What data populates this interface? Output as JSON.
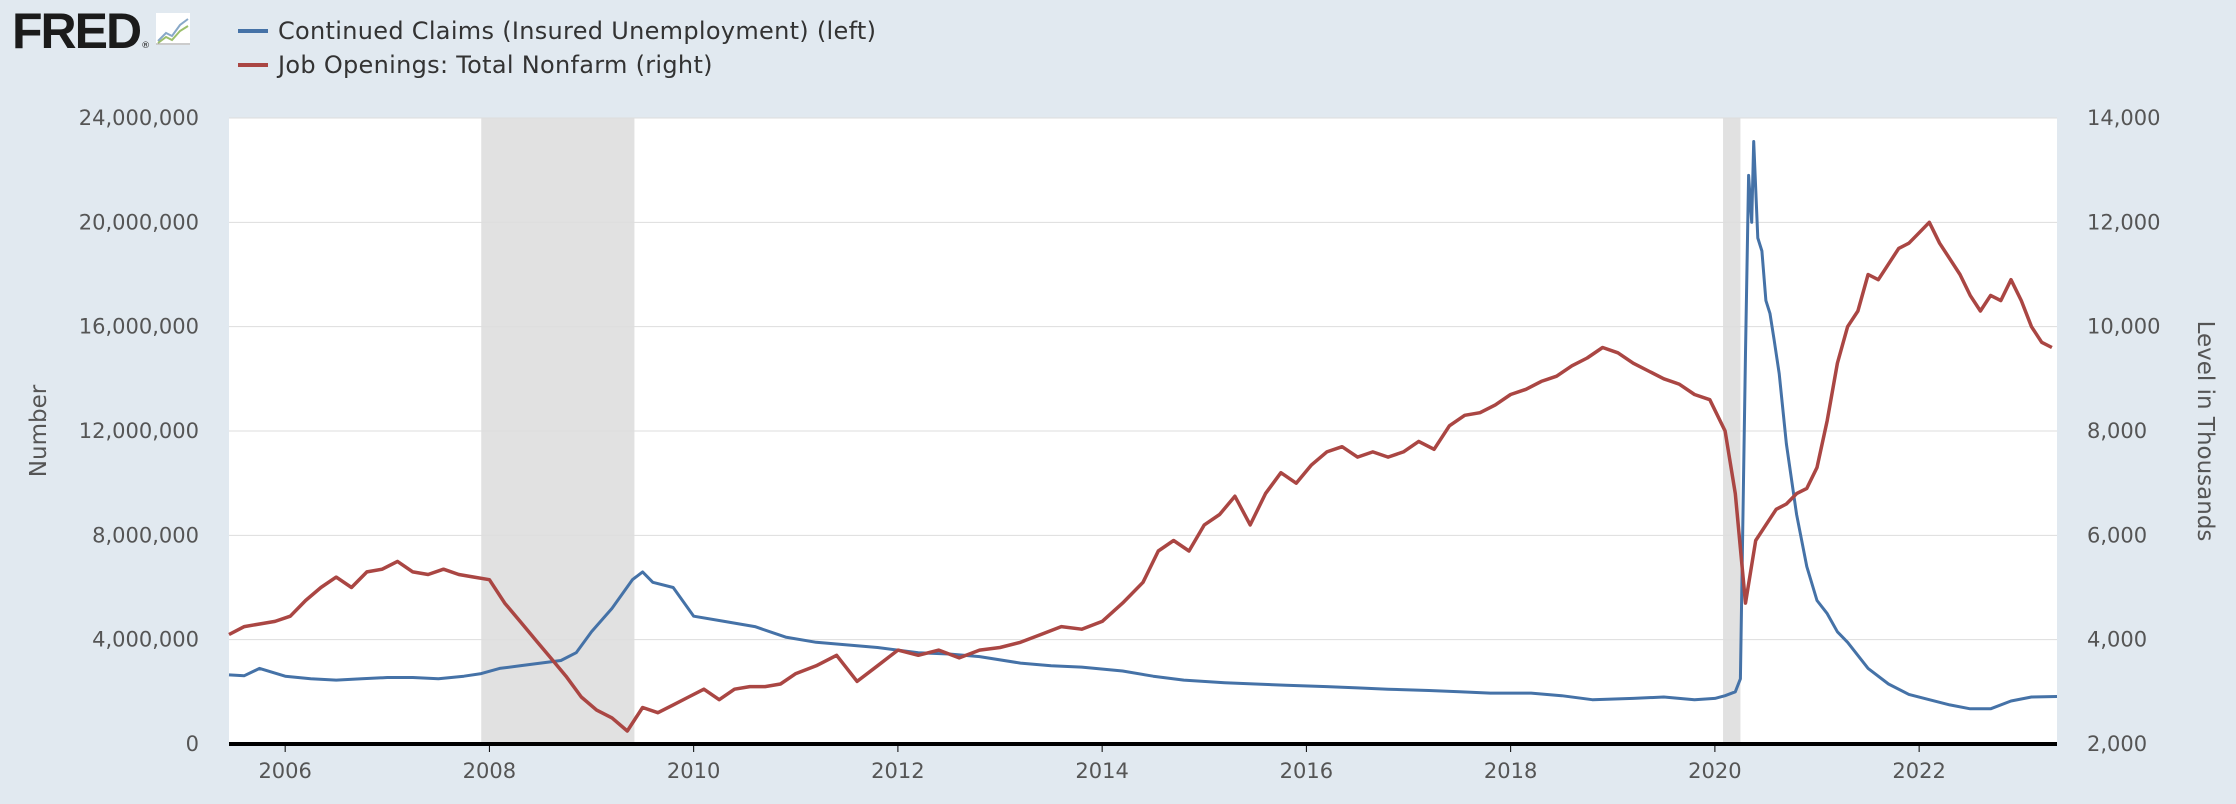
{
  "logo": {
    "text": "FRED",
    "mark": "®",
    "icon": "line-chart-icon"
  },
  "legend": [
    {
      "label": "Continued Claims (Insured Unemployment) (left)",
      "color": "#4572a7"
    },
    {
      "label": "Job Openings: Total Nonfarm (right)",
      "color": "#aa4643"
    }
  ],
  "colors": {
    "background": "#e1e9f0",
    "plot_background": "#ffffff",
    "recession": "#e1e1e1",
    "gridline": "#dddddd",
    "axis": "#000000"
  },
  "chart_data": {
    "type": "line",
    "title": "",
    "xlabel": "",
    "ylabel_left": "Number",
    "ylabel_right": "Level in Thousands",
    "xlim": [
      2005.45,
      2023.35
    ],
    "ylim_left": [
      0,
      24000000
    ],
    "ylim_right": [
      2000,
      14000
    ],
    "x_ticks": [
      2006,
      2008,
      2010,
      2012,
      2014,
      2016,
      2018,
      2020,
      2022
    ],
    "y_left_ticks": [
      0,
      4000000,
      8000000,
      12000000,
      16000000,
      20000000,
      24000000
    ],
    "y_left_tick_labels": [
      "0",
      "4,000,000",
      "8,000,000",
      "12,000,000",
      "16,000,000",
      "20,000,000",
      "24,000,000"
    ],
    "y_right_ticks": [
      2000,
      4000,
      6000,
      8000,
      10000,
      12000,
      14000
    ],
    "y_right_tick_labels": [
      "2,000",
      "4,000",
      "6,000",
      "8,000",
      "10,000",
      "12,000",
      "14,000"
    ],
    "grid": true,
    "recessions": [
      [
        2007.92,
        2009.42
      ],
      [
        2020.08,
        2020.25
      ]
    ],
    "series": [
      {
        "name": "Continued Claims (Insured Unemployment) (left)",
        "axis": "left",
        "color": "#4572a7",
        "x": [
          2005.45,
          2005.6,
          2005.75,
          2006.0,
          2006.25,
          2006.5,
          2006.75,
          2007.0,
          2007.25,
          2007.5,
          2007.75,
          2007.92,
          2008.1,
          2008.3,
          2008.5,
          2008.7,
          2008.85,
          2009.0,
          2009.2,
          2009.4,
          2009.5,
          2009.6,
          2009.8,
          2010.0,
          2010.3,
          2010.6,
          2010.9,
          2011.2,
          2011.5,
          2011.8,
          2012.2,
          2012.5,
          2012.8,
          2013.2,
          2013.5,
          2013.8,
          2014.2,
          2014.5,
          2014.8,
          2015.2,
          2015.5,
          2015.8,
          2016.2,
          2016.5,
          2016.8,
          2017.2,
          2017.5,
          2017.8,
          2018.2,
          2018.5,
          2018.8,
          2019.2,
          2019.5,
          2019.8,
          2020.0,
          2020.1,
          2020.2,
          2020.25,
          2020.3,
          2020.33,
          2020.36,
          2020.38,
          2020.42,
          2020.46,
          2020.5,
          2020.54,
          2020.58,
          2020.63,
          2020.7,
          2020.8,
          2020.9,
          2021.0,
          2021.1,
          2021.2,
          2021.3,
          2021.5,
          2021.7,
          2021.9,
          2022.1,
          2022.3,
          2022.5,
          2022.7,
          2022.9,
          2023.1,
          2023.35
        ],
        "y": [
          2650000,
          2620000,
          2900000,
          2600000,
          2500000,
          2450000,
          2500000,
          2550000,
          2550000,
          2500000,
          2600000,
          2700000,
          2900000,
          3000000,
          3100000,
          3200000,
          3500000,
          4300000,
          5200000,
          6300000,
          6600000,
          6200000,
          6000000,
          4900000,
          4700000,
          4500000,
          4100000,
          3900000,
          3800000,
          3700000,
          3500000,
          3450000,
          3350000,
          3100000,
          3000000,
          2950000,
          2800000,
          2600000,
          2450000,
          2350000,
          2300000,
          2250000,
          2200000,
          2150000,
          2100000,
          2050000,
          2000000,
          1950000,
          1950000,
          1850000,
          1700000,
          1750000,
          1800000,
          1700000,
          1750000,
          1850000,
          2000000,
          2500000,
          15000000,
          21800000,
          20000000,
          23100000,
          19400000,
          18900000,
          17000000,
          16500000,
          15500000,
          14200000,
          11500000,
          8800000,
          6800000,
          5500000,
          5000000,
          4300000,
          3900000,
          2900000,
          2300000,
          1900000,
          1700000,
          1500000,
          1350000,
          1350000,
          1650000,
          1800000,
          1820000
        ]
      },
      {
        "name": "Job Openings: Total Nonfarm (right)",
        "axis": "right",
        "color": "#aa4643",
        "x": [
          2005.45,
          2005.6,
          2005.75,
          2005.9,
          2006.05,
          2006.2,
          2006.35,
          2006.5,
          2006.65,
          2006.8,
          2006.95,
          2007.1,
          2007.25,
          2007.4,
          2007.55,
          2007.7,
          2007.85,
          2008.0,
          2008.15,
          2008.3,
          2008.45,
          2008.6,
          2008.75,
          2008.9,
          2009.05,
          2009.2,
          2009.35,
          2009.5,
          2009.65,
          2009.8,
          2009.95,
          2010.1,
          2010.25,
          2010.4,
          2010.55,
          2010.7,
          2010.85,
          2011.0,
          2011.2,
          2011.4,
          2011.6,
          2011.8,
          2012.0,
          2012.2,
          2012.4,
          2012.6,
          2012.8,
          2013.0,
          2013.2,
          2013.4,
          2013.6,
          2013.8,
          2014.0,
          2014.2,
          2014.4,
          2014.55,
          2014.7,
          2014.85,
          2015.0,
          2015.15,
          2015.3,
          2015.45,
          2015.6,
          2015.75,
          2015.9,
          2016.05,
          2016.2,
          2016.35,
          2016.5,
          2016.65,
          2016.8,
          2016.95,
          2017.1,
          2017.25,
          2017.4,
          2017.55,
          2017.7,
          2017.85,
          2018.0,
          2018.15,
          2018.3,
          2018.45,
          2018.6,
          2018.75,
          2018.9,
          2019.05,
          2019.2,
          2019.35,
          2019.5,
          2019.65,
          2019.8,
          2019.95,
          2020.1,
          2020.2,
          2020.3,
          2020.4,
          2020.5,
          2020.6,
          2020.7,
          2020.8,
          2020.9,
          2021.0,
          2021.1,
          2021.2,
          2021.3,
          2021.4,
          2021.5,
          2021.6,
          2021.7,
          2021.8,
          2021.9,
          2022.0,
          2022.1,
          2022.2,
          2022.3,
          2022.4,
          2022.5,
          2022.6,
          2022.7,
          2022.8,
          2022.9,
          2023.0,
          2023.1,
          2023.2,
          2023.3
        ],
        "y": [
          4100,
          4250,
          4300,
          4350,
          4450,
          4750,
          5000,
          5200,
          5000,
          5300,
          5350,
          5500,
          5300,
          5250,
          5350,
          5250,
          5200,
          5150,
          4700,
          4350,
          4000,
          3650,
          3300,
          2900,
          2650,
          2500,
          2250,
          2700,
          2600,
          2750,
          2900,
          3050,
          2850,
          3050,
          3100,
          3100,
          3150,
          3350,
          3500,
          3700,
          3200,
          3500,
          3800,
          3700,
          3800,
          3650,
          3800,
          3850,
          3950,
          4100,
          4250,
          4200,
          4350,
          4700,
          5100,
          5700,
          5900,
          5700,
          6200,
          6400,
          6750,
          6200,
          6800,
          7200,
          7000,
          7350,
          7600,
          7700,
          7500,
          7600,
          7500,
          7600,
          7800,
          7650,
          8100,
          8300,
          8350,
          8500,
          8700,
          8800,
          8950,
          9050,
          9250,
          9400,
          9600,
          9500,
          9300,
          9150,
          9000,
          8900,
          8700,
          8600,
          8000,
          6800,
          4700,
          5900,
          6200,
          6500,
          6600,
          6800,
          6900,
          7300,
          8200,
          9300,
          10000,
          10300,
          11000,
          10900,
          11200,
          11500,
          11600,
          11800,
          12000,
          11600,
          11300,
          11000,
          10600,
          10300,
          10600,
          10500,
          10900,
          10500,
          10000,
          9700,
          9600
        ]
      }
    ]
  }
}
